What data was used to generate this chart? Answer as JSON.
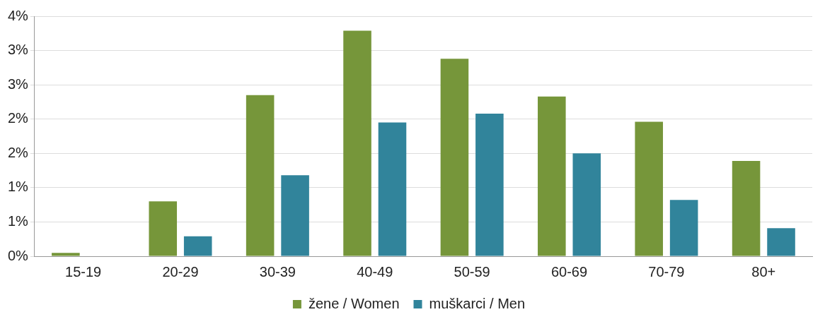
{
  "chart_data": {
    "type": "bar",
    "categories": [
      "15-19",
      "20-29",
      "30-39",
      "40-49",
      "50-59",
      "60-69",
      "70-79",
      "80+"
    ],
    "series": [
      {
        "name": "žene / Women",
        "color": "#76963a",
        "values": [
          0.05,
          0.8,
          2.35,
          3.29,
          2.88,
          2.33,
          1.96,
          1.39
        ]
      },
      {
        "name": "muškarci / Men",
        "color": "#31849b",
        "values": [
          0,
          0.29,
          1.18,
          1.95,
          2.08,
          1.5,
          0.82,
          0.41
        ]
      }
    ],
    "ylim": [
      0,
      3.5
    ],
    "yticks": [
      {
        "value": 0,
        "label": "0%"
      },
      {
        "value": 0.5,
        "label": "1%"
      },
      {
        "value": 1,
        "label": "1%"
      },
      {
        "value": 1.5,
        "label": "2%"
      },
      {
        "value": 2,
        "label": "2%"
      },
      {
        "value": 2.5,
        "label": "3%"
      },
      {
        "value": 3,
        "label": "3%"
      },
      {
        "value": 3.5,
        "label": "4%"
      }
    ],
    "grid": "y",
    "legend": "bottom"
  }
}
